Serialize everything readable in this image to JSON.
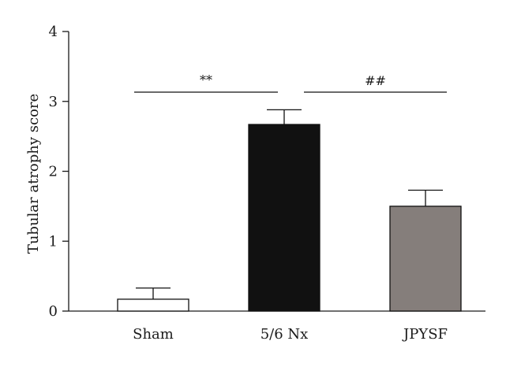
{
  "chart_data": {
    "type": "bar",
    "title": "",
    "xlabel": "",
    "ylabel": "Tubular atrophy score",
    "ylim": [
      0,
      4
    ],
    "yticks": [
      0,
      1,
      2,
      3,
      4
    ],
    "grid": false,
    "categories": [
      "Sham",
      "5/6 Nx",
      "JPYSF"
    ],
    "values": [
      0.17,
      2.67,
      1.5
    ],
    "error_upper": [
      0.16,
      0.21,
      0.23
    ],
    "bar_colors": [
      "#ffffff",
      "#111111",
      "#857e7b"
    ],
    "annotations": [
      {
        "label": "**",
        "from": "Sham",
        "to": "5/6 Nx"
      },
      {
        "label": "##",
        "from": "5/6 Nx",
        "to": "JPYSF"
      }
    ]
  }
}
